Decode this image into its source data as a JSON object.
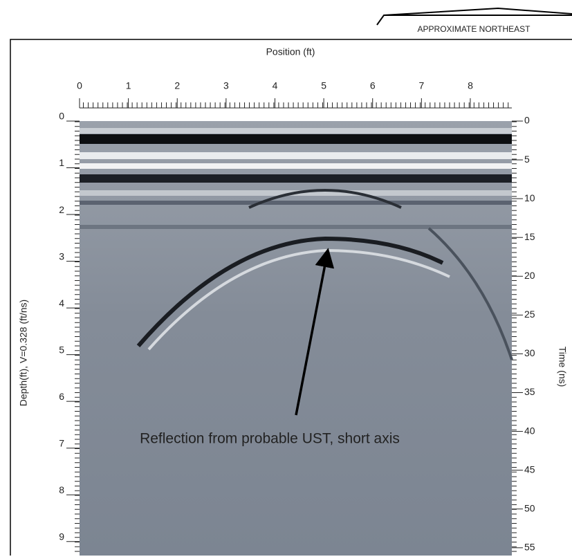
{
  "chart_data": {
    "type": "radargram",
    "direction_label": "APPROXIMATE NORTHEAST",
    "x_label": "Position (ft)",
    "y_label": "Depth(ft), V=0.328 (ft/ns)",
    "y2_label": "Time (ns)",
    "annotation": "Reflection from probable UST, short axis",
    "xlim": [
      0,
      8.85
    ],
    "xticks": [
      0,
      1,
      2,
      3,
      4,
      5,
      6,
      7,
      8
    ],
    "ylim": [
      0,
      9.3
    ],
    "yticks": [
      0,
      1,
      2,
      3,
      4,
      5,
      6,
      7,
      8,
      9
    ],
    "y2lim": [
      0,
      56
    ],
    "y2ticks": [
      0,
      5,
      10,
      15,
      20,
      25,
      30,
      35,
      40,
      45,
      50,
      55
    ]
  }
}
